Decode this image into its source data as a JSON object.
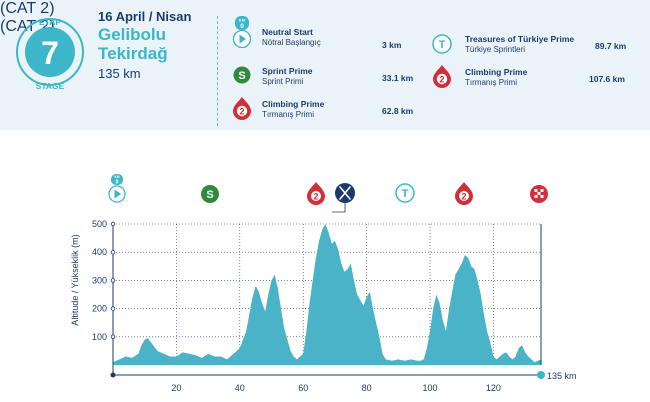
{
  "stage": {
    "word_top": "ETAP",
    "number": "7",
    "word_bottom": "STAGE"
  },
  "header": {
    "date": "16 April / Nisan",
    "route_line1": "Gelibolu",
    "route_line2": "Tekirdağ",
    "distance": "135 km"
  },
  "legend": {
    "neutral": {
      "title": "Neutral Start",
      "subtitle": "Nötral Başlangıç",
      "km": "3 km",
      "badge_label": "KM",
      "badge_value": "0"
    },
    "sprint": {
      "title": "Sprint Prime",
      "subtitle": "Sprint Primi",
      "km": "33.1 km",
      "icon_letter": "S"
    },
    "climb1": {
      "title": "Climbing Prime",
      "subtitle": "Tırmanış Primi",
      "category": "(CAT 2)",
      "km": "62.8 km",
      "icon_number": "2"
    },
    "treasures": {
      "title": "Treasures of Türkiye Prime",
      "subtitle": "Türkiye Sprintleri",
      "km": "89.7 km",
      "icon_letter": "T"
    },
    "climb2": {
      "title": "Climbing Prime",
      "subtitle": "Tırmanış Primi",
      "category": "(CAT 2)",
      "km": "107.6 km",
      "icon_number": "2"
    }
  },
  "profile_markers": {
    "start_km_label": "KM",
    "start_km_value": "0",
    "sprint_letter": "S",
    "climb_number": "2",
    "treasure_letter": "T"
  },
  "colors": {
    "navy": "#1e3a6d",
    "teal": "#3cb6c8",
    "profile_fill": "#4bb3c8",
    "sprint_green": "#2e8b3e",
    "climb_red": "#d32f3a",
    "header_bg": "#eaf4f8"
  },
  "chart_data": {
    "type": "area",
    "ylabel": "Altitude / Yükseklik (m)",
    "end_label": "135 km",
    "x_ticks": [
      20,
      40,
      60,
      80,
      100,
      120
    ],
    "y_ticks": [
      100,
      200,
      300,
      400,
      500
    ],
    "xlim": [
      0,
      135
    ],
    "ylim": [
      0,
      500
    ],
    "grid": true,
    "x": [
      0,
      2,
      4,
      6,
      8,
      9,
      10,
      11,
      12,
      14,
      16,
      18,
      20,
      22,
      24,
      26,
      28,
      30,
      32,
      34,
      36,
      38,
      40,
      42,
      43,
      44,
      45,
      46,
      47,
      48,
      49,
      50,
      51,
      52,
      53,
      54,
      55,
      56,
      57,
      58,
      60,
      61,
      62,
      63,
      64,
      65,
      66,
      67,
      68,
      69,
      70,
      71,
      72,
      73,
      74,
      75,
      76,
      77,
      78,
      79,
      80,
      81,
      82,
      83,
      84,
      85,
      86,
      88,
      90,
      92,
      94,
      96,
      97,
      98,
      99,
      100,
      101,
      102,
      103,
      104,
      105,
      106,
      107,
      108,
      109,
      110,
      111,
      112,
      113,
      114,
      115,
      116,
      117,
      118,
      119,
      120,
      121,
      122,
      123,
      124,
      125,
      126,
      127,
      128,
      129,
      130,
      131,
      132,
      133,
      134,
      135
    ],
    "y": [
      10,
      20,
      30,
      25,
      40,
      70,
      90,
      95,
      80,
      50,
      40,
      30,
      30,
      45,
      40,
      35,
      25,
      40,
      30,
      30,
      20,
      40,
      60,
      120,
      180,
      240,
      280,
      260,
      220,
      190,
      250,
      300,
      320,
      270,
      200,
      130,
      90,
      50,
      30,
      20,
      40,
      120,
      220,
      300,
      380,
      440,
      480,
      500,
      470,
      430,
      440,
      410,
      360,
      330,
      340,
      360,
      300,
      250,
      230,
      210,
      240,
      260,
      200,
      150,
      100,
      40,
      20,
      15,
      20,
      15,
      20,
      15,
      15,
      20,
      60,
      120,
      200,
      250,
      220,
      160,
      120,
      200,
      260,
      320,
      340,
      360,
      390,
      380,
      350,
      340,
      300,
      250,
      180,
      120,
      80,
      30,
      20,
      30,
      40,
      45,
      30,
      20,
      30,
      60,
      70,
      45,
      30,
      20,
      10,
      15,
      20
    ]
  }
}
